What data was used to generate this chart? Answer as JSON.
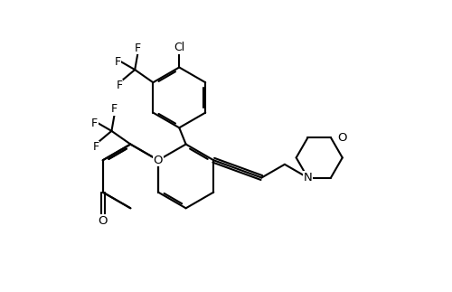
{
  "bg": "#ffffff",
  "lc": "#000000",
  "lw": 1.5,
  "fs": 9,
  "figsize": [
    5.0,
    3.23
  ],
  "dpi": 100,
  "xlim": [
    0,
    10
  ],
  "ylim": [
    0,
    6.46
  ],
  "ring_r": 0.72
}
